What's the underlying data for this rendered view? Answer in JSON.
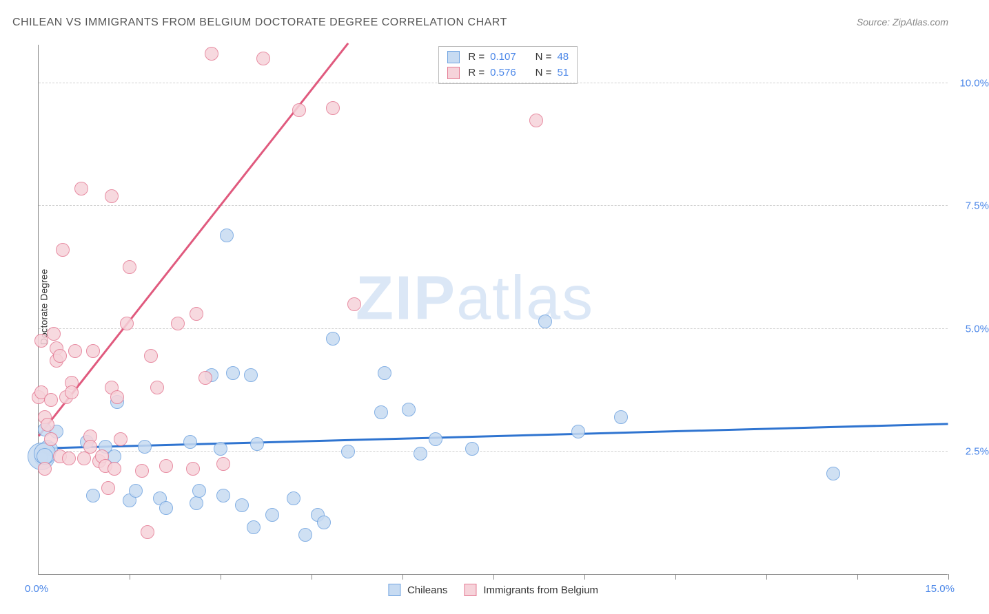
{
  "title": "CHILEAN VS IMMIGRANTS FROM BELGIUM DOCTORATE DEGREE CORRELATION CHART",
  "source": "Source: ZipAtlas.com",
  "y_axis_label": "Doctorate Degree",
  "watermark": {
    "part1": "ZIP",
    "part2": "atlas"
  },
  "chart": {
    "type": "scatter",
    "background_color": "#ffffff",
    "grid_color": "#d0d0d0",
    "axis_color": "#888888",
    "tick_label_color": "#4a86e8",
    "x_range": [
      0,
      15
    ],
    "y_range": [
      0,
      10.8
    ],
    "x_tick_positions": [
      1.5,
      3.0,
      4.5,
      6.0,
      7.5,
      9.0,
      10.5,
      12.0,
      13.5,
      15.0
    ],
    "x_min_label": "0.0%",
    "x_max_label": "15.0%",
    "y_ticks": [
      {
        "value": 2.5,
        "label": "2.5%"
      },
      {
        "value": 5.0,
        "label": "5.0%"
      },
      {
        "value": 7.5,
        "label": "7.5%"
      },
      {
        "value": 10.0,
        "label": "10.0%"
      }
    ],
    "series": [
      {
        "key": "chileans",
        "label": "Chileans",
        "fill": "#c7dbf2",
        "stroke": "#6fa3e0",
        "line_color": "#2f74d0",
        "r_value": "0.107",
        "n_value": "48",
        "trend": {
          "x1": 0,
          "y1": 2.55,
          "x2": 15,
          "y2": 3.05
        },
        "marker_radius": 10,
        "points": [
          [
            0.05,
            2.4
          ],
          [
            0.05,
            2.35
          ],
          [
            0.1,
            2.95
          ],
          [
            0.15,
            2.6
          ],
          [
            0.2,
            2.55
          ],
          [
            0.3,
            2.9
          ],
          [
            0.8,
            2.7
          ],
          [
            0.9,
            1.6
          ],
          [
            1.1,
            2.6
          ],
          [
            1.25,
            2.4
          ],
          [
            1.3,
            3.5
          ],
          [
            1.5,
            1.5
          ],
          [
            1.6,
            1.7
          ],
          [
            1.75,
            2.6
          ],
          [
            2.0,
            1.55
          ],
          [
            2.1,
            1.35
          ],
          [
            2.5,
            2.7
          ],
          [
            2.6,
            1.45
          ],
          [
            2.65,
            1.7
          ],
          [
            2.85,
            4.05
          ],
          [
            3.0,
            2.55
          ],
          [
            3.05,
            1.6
          ],
          [
            3.1,
            6.9
          ],
          [
            3.2,
            4.1
          ],
          [
            3.35,
            1.4
          ],
          [
            3.5,
            4.05
          ],
          [
            3.55,
            0.95
          ],
          [
            3.6,
            2.65
          ],
          [
            3.85,
            1.2
          ],
          [
            4.2,
            1.55
          ],
          [
            4.4,
            0.8
          ],
          [
            4.6,
            1.2
          ],
          [
            4.7,
            1.05
          ],
          [
            4.85,
            4.8
          ],
          [
            5.1,
            2.5
          ],
          [
            5.65,
            3.3
          ],
          [
            5.7,
            4.1
          ],
          [
            6.1,
            3.35
          ],
          [
            6.3,
            2.45
          ],
          [
            6.55,
            2.75
          ],
          [
            7.15,
            2.55
          ],
          [
            8.35,
            5.15
          ],
          [
            8.9,
            2.9
          ],
          [
            9.6,
            3.2
          ],
          [
            13.1,
            2.05
          ],
          [
            0.05,
            2.4,
            20
          ],
          [
            0.1,
            2.45,
            16
          ],
          [
            0.1,
            2.4,
            12
          ]
        ]
      },
      {
        "key": "belgium",
        "label": "Immigrants from Belgium",
        "fill": "#f6d3da",
        "stroke": "#e47a93",
        "line_color": "#e05a7e",
        "r_value": "0.576",
        "n_value": "51",
        "trend": {
          "x1": 0,
          "y1": 2.8,
          "x2": 5.1,
          "y2": 10.8
        },
        "marker_radius": 10,
        "points": [
          [
            0.0,
            3.6
          ],
          [
            0.05,
            3.7
          ],
          [
            0.05,
            4.75
          ],
          [
            0.1,
            2.15
          ],
          [
            0.1,
            3.2
          ],
          [
            0.15,
            3.05
          ],
          [
            0.2,
            2.75
          ],
          [
            0.2,
            3.55
          ],
          [
            0.25,
            4.9
          ],
          [
            0.3,
            4.6
          ],
          [
            0.3,
            4.35
          ],
          [
            0.35,
            2.4
          ],
          [
            0.35,
            4.45
          ],
          [
            0.4,
            6.6
          ],
          [
            0.45,
            3.6
          ],
          [
            0.5,
            2.35
          ],
          [
            0.55,
            3.9
          ],
          [
            0.55,
            3.7
          ],
          [
            0.6,
            4.55
          ],
          [
            0.7,
            7.85
          ],
          [
            0.75,
            2.35
          ],
          [
            0.85,
            2.8
          ],
          [
            0.85,
            2.6
          ],
          [
            0.9,
            4.55
          ],
          [
            1.0,
            2.3
          ],
          [
            1.05,
            2.4
          ],
          [
            1.1,
            2.2
          ],
          [
            1.15,
            1.75
          ],
          [
            1.2,
            3.8
          ],
          [
            1.2,
            7.7
          ],
          [
            1.25,
            2.15
          ],
          [
            1.3,
            3.6
          ],
          [
            1.35,
            2.75
          ],
          [
            1.45,
            5.1
          ],
          [
            1.5,
            6.25
          ],
          [
            1.7,
            2.1
          ],
          [
            1.8,
            0.85
          ],
          [
            1.85,
            4.45
          ],
          [
            1.95,
            3.8
          ],
          [
            2.1,
            2.2
          ],
          [
            2.3,
            5.1
          ],
          [
            2.55,
            2.15
          ],
          [
            2.6,
            5.3
          ],
          [
            2.75,
            4.0
          ],
          [
            2.85,
            10.6
          ],
          [
            3.05,
            2.25
          ],
          [
            3.7,
            10.5
          ],
          [
            4.3,
            9.45
          ],
          [
            4.85,
            9.5
          ],
          [
            5.2,
            5.5
          ],
          [
            8.2,
            9.25
          ]
        ]
      }
    ]
  },
  "r_legend": {
    "r_label": "R =",
    "n_label": "N ="
  }
}
